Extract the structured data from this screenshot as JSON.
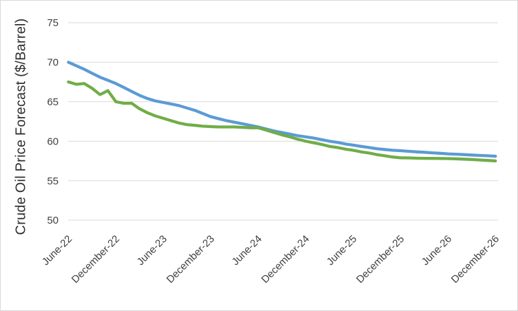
{
  "window": {
    "background": "#ffffff",
    "border_color": "#d9d9d9"
  },
  "chart_data": {
    "type": "line",
    "title": "",
    "xlabel": "",
    "ylabel": "Crude Oil Price Forecast ($/Barrel)",
    "ylim": [
      50,
      75
    ],
    "yticks": [
      50,
      55,
      60,
      65,
      70,
      75
    ],
    "grid": "horizontal",
    "legend": "none",
    "gridline_color": "#d9d9d9",
    "tick_label_color": "#404040",
    "x_tick_every": 6,
    "x_tick_labels": [
      "June-22",
      "December-22",
      "June-23",
      "December-23",
      "June-24",
      "December-24",
      "June-25",
      "December-25",
      "June-26",
      "December-26"
    ],
    "x": [
      "June-22",
      "July-22",
      "August-22",
      "September-22",
      "October-22",
      "November-22",
      "December-22",
      "January-23",
      "February-23",
      "March-23",
      "April-23",
      "May-23",
      "June-23",
      "July-23",
      "August-23",
      "September-23",
      "October-23",
      "November-23",
      "December-23",
      "January-24",
      "February-24",
      "March-24",
      "April-24",
      "May-24",
      "June-24",
      "July-24",
      "August-24",
      "September-24",
      "October-24",
      "November-24",
      "December-24",
      "January-25",
      "February-25",
      "March-25",
      "April-25",
      "May-25",
      "June-25",
      "July-25",
      "August-25",
      "September-25",
      "October-25",
      "November-25",
      "December-25",
      "January-26",
      "February-26",
      "March-26",
      "April-26",
      "May-26",
      "June-26",
      "July-26",
      "August-26",
      "September-26",
      "October-26",
      "November-26",
      "December-26"
    ],
    "series": [
      {
        "name": "series-blue",
        "color": "#5B9BD5",
        "values": [
          70.0,
          69.55,
          69.1,
          68.6,
          68.1,
          67.7,
          67.3,
          66.8,
          66.3,
          65.8,
          65.4,
          65.1,
          64.9,
          64.7,
          64.5,
          64.2,
          63.9,
          63.5,
          63.1,
          62.85,
          62.6,
          62.4,
          62.2,
          62.0,
          61.8,
          61.55,
          61.3,
          61.1,
          60.9,
          60.7,
          60.55,
          60.4,
          60.2,
          60.0,
          59.85,
          59.65,
          59.5,
          59.35,
          59.2,
          59.05,
          58.95,
          58.85,
          58.8,
          58.72,
          58.65,
          58.6,
          58.53,
          58.47,
          58.4,
          58.35,
          58.3,
          58.25,
          58.2,
          58.15,
          58.1
        ]
      },
      {
        "name": "series-green",
        "color": "#70AD47",
        "values": [
          67.5,
          67.2,
          67.3,
          66.7,
          65.9,
          66.4,
          65.0,
          64.8,
          64.8,
          64.1,
          63.6,
          63.2,
          62.9,
          62.6,
          62.3,
          62.1,
          62.0,
          61.9,
          61.85,
          61.8,
          61.8,
          61.8,
          61.75,
          61.7,
          61.7,
          61.4,
          61.1,
          60.8,
          60.55,
          60.25,
          60.0,
          59.8,
          59.6,
          59.35,
          59.2,
          59.0,
          58.85,
          58.65,
          58.5,
          58.3,
          58.15,
          58.0,
          57.9,
          57.88,
          57.85,
          57.83,
          57.82,
          57.81,
          57.8,
          57.77,
          57.73,
          57.68,
          57.62,
          57.56,
          57.5
        ]
      }
    ]
  }
}
